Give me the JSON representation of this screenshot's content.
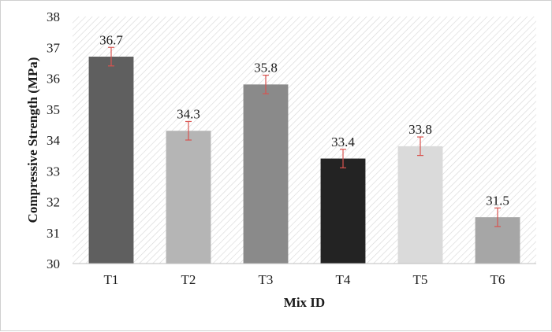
{
  "chart_data": {
    "type": "bar",
    "xlabel": "Mix ID",
    "ylabel": "Compressive Strength (MPa)",
    "categories": [
      "T1",
      "T2",
      "T3",
      "T4",
      "T5",
      "T6"
    ],
    "values": [
      36.7,
      34.3,
      35.8,
      33.4,
      33.8,
      31.5
    ],
    "value_labels": [
      "36.7",
      "34.3",
      "35.8",
      "33.4",
      "33.8",
      "31.5"
    ],
    "error": [
      0.3,
      0.3,
      0.3,
      0.3,
      0.3,
      0.3
    ],
    "ylim": [
      30,
      38
    ],
    "yticks": [
      30,
      31,
      32,
      33,
      34,
      35,
      36,
      37,
      38
    ],
    "ytick_labels": [
      "30",
      "31",
      "32",
      "33",
      "34",
      "35",
      "36",
      "37",
      "38"
    ],
    "bar_colors": [
      "#5f5f5f",
      "#b5b5b5",
      "#8a8a8a",
      "#232323",
      "#dadada",
      "#a6a6a6"
    ],
    "error_bar_color": "#d9534f",
    "grid": false,
    "background": "diagonal hatch"
  }
}
